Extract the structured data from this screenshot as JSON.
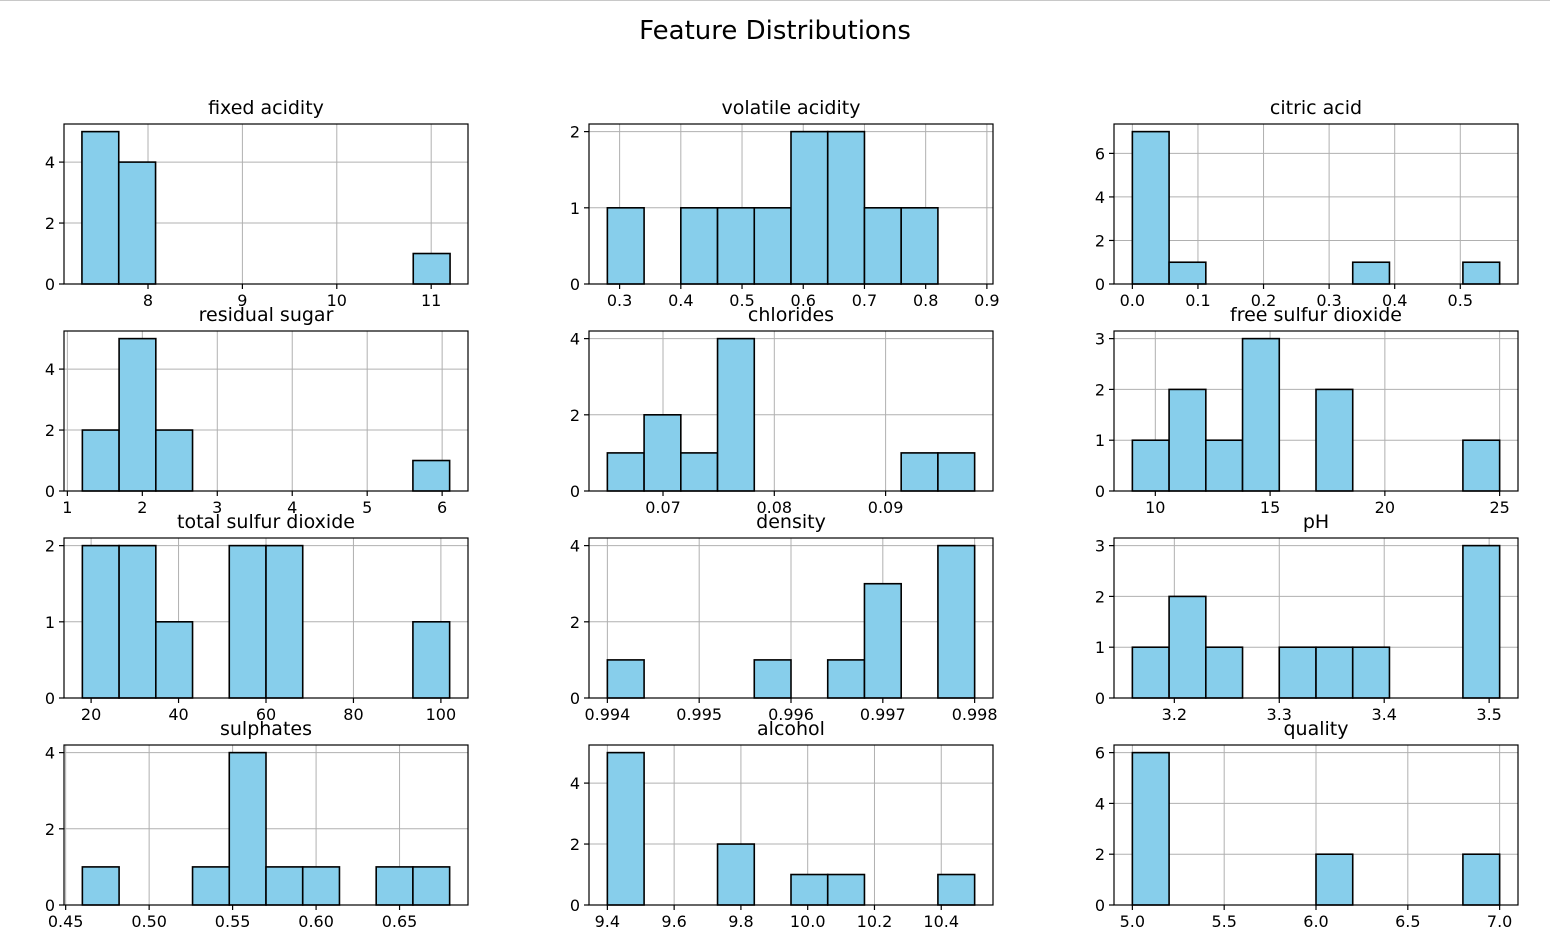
{
  "suptitle": "Feature Distributions",
  "colors": {
    "bar_fill": "#87ceeb",
    "bar_edge": "#000000",
    "grid": "#b0b0b0"
  },
  "chart_data": [
    {
      "type": "bar",
      "title": "fixed acidity",
      "bin_range": [
        7.3,
        11.2
      ],
      "counts": [
        5,
        4,
        0,
        0,
        0,
        0,
        0,
        0,
        0,
        1
      ],
      "xlim": [
        7.11,
        11.39
      ],
      "ylim": [
        0,
        5.25
      ],
      "xticks": [
        8,
        9,
        10,
        11
      ],
      "xtick_labels": [
        "8",
        "9",
        "10",
        "11"
      ],
      "yticks": [
        0,
        2,
        4
      ],
      "ytick_labels": [
        "0",
        "2",
        "4"
      ]
    },
    {
      "type": "bar",
      "title": "volatile acidity",
      "bin_range": [
        0.28,
        0.88
      ],
      "counts": [
        1,
        0,
        1,
        1,
        1,
        2,
        2,
        1,
        1,
        0
      ],
      "xlim": [
        0.25,
        0.91
      ],
      "ylim": [
        0,
        2.1
      ],
      "xticks": [
        0.3,
        0.4,
        0.5,
        0.6,
        0.7,
        0.8,
        0.9
      ],
      "xtick_labels": [
        "0.3",
        "0.4",
        "0.5",
        "0.6",
        "0.7",
        "0.8",
        "0.9"
      ],
      "yticks": [
        0,
        1,
        2
      ],
      "ytick_labels": [
        "0",
        "1",
        "2"
      ]
    },
    {
      "type": "bar",
      "title": "citric acid",
      "bin_range": [
        0.0,
        0.56
      ],
      "counts": [
        7,
        1,
        0,
        0,
        0,
        0,
        1,
        0,
        0,
        1
      ],
      "xlim": [
        -0.028,
        0.588
      ],
      "ylim": [
        0,
        7.35
      ],
      "xticks": [
        0,
        0.1,
        0.2,
        0.3,
        0.4,
        0.5
      ],
      "xtick_labels": [
        "0.0",
        "0.1",
        "0.2",
        "0.3",
        "0.4",
        "0.5"
      ],
      "yticks": [
        0,
        2,
        4,
        6
      ],
      "ytick_labels": [
        "0",
        "2",
        "4",
        "6"
      ]
    },
    {
      "type": "bar",
      "title": "residual sugar",
      "bin_range": [
        1.2,
        6.1
      ],
      "counts": [
        2,
        5,
        2,
        0,
        0,
        0,
        0,
        0,
        0,
        1
      ],
      "xlim": [
        0.955,
        6.345
      ],
      "ylim": [
        0,
        5.25
      ],
      "xticks": [
        1,
        2,
        3,
        4,
        5,
        6
      ],
      "xtick_labels": [
        "1",
        "2",
        "3",
        "4",
        "5",
        "6"
      ],
      "yticks": [
        0,
        2,
        4
      ],
      "ytick_labels": [
        "0",
        "2",
        "4"
      ]
    },
    {
      "type": "bar",
      "title": "chlorides",
      "bin_range": [
        0.065,
        0.098
      ],
      "counts": [
        1,
        2,
        1,
        4,
        0,
        0,
        0,
        0,
        1,
        1
      ],
      "xlim": [
        0.06335,
        0.09965
      ],
      "ylim": [
        0,
        4.2
      ],
      "xticks": [
        0.07,
        0.08,
        0.09
      ],
      "xtick_labels": [
        "0.07",
        "0.08",
        "0.09"
      ],
      "yticks": [
        0,
        2,
        4
      ],
      "ytick_labels": [
        "0",
        "2",
        "4"
      ]
    },
    {
      "type": "bar",
      "title": "free sulfur dioxide",
      "bin_range": [
        9,
        25
      ],
      "counts": [
        1,
        2,
        1,
        3,
        0,
        2,
        0,
        0,
        0,
        1
      ],
      "xlim": [
        8.2,
        25.8
      ],
      "ylim": [
        0,
        3.15
      ],
      "xticks": [
        10,
        15,
        20,
        25
      ],
      "xtick_labels": [
        "10",
        "15",
        "20",
        "25"
      ],
      "yticks": [
        0,
        1,
        2,
        3
      ],
      "ytick_labels": [
        "0",
        "1",
        "2",
        "3"
      ]
    },
    {
      "type": "bar",
      "title": "total sulfur dioxide",
      "bin_range": [
        18,
        102
      ],
      "counts": [
        2,
        2,
        1,
        0,
        2,
        2,
        0,
        0,
        0,
        1
      ],
      "xlim": [
        13.8,
        106.2
      ],
      "ylim": [
        0,
        2.1
      ],
      "xticks": [
        20,
        40,
        60,
        80,
        100
      ],
      "xtick_labels": [
        "20",
        "40",
        "60",
        "80",
        "100"
      ],
      "yticks": [
        0,
        1,
        2
      ],
      "ytick_labels": [
        "0",
        "1",
        "2"
      ]
    },
    {
      "type": "bar",
      "title": "density",
      "bin_range": [
        0.994,
        0.998
      ],
      "counts": [
        1,
        0,
        0,
        0,
        1,
        0,
        1,
        3,
        0,
        4
      ],
      "xlim": [
        0.9938,
        0.9982
      ],
      "ylim": [
        0,
        4.2
      ],
      "xticks": [
        0.994,
        0.995,
        0.996,
        0.997,
        0.998
      ],
      "xtick_labels": [
        "0.994",
        "0.995",
        "0.996",
        "0.997",
        "0.998"
      ],
      "yticks": [
        0,
        2,
        4
      ],
      "ytick_labels": [
        "0",
        "2",
        "4"
      ]
    },
    {
      "type": "bar",
      "title": "pH",
      "bin_range": [
        3.16,
        3.51
      ],
      "counts": [
        1,
        2,
        1,
        0,
        1,
        1,
        1,
        0,
        0,
        3
      ],
      "xlim": [
        3.1425,
        3.5275
      ],
      "ylim": [
        0,
        3.15
      ],
      "xticks": [
        3.2,
        3.3,
        3.4,
        3.5
      ],
      "xtick_labels": [
        "3.2",
        "3.3",
        "3.4",
        "3.5"
      ],
      "yticks": [
        0,
        1,
        2,
        3
      ],
      "ytick_labels": [
        "0",
        "1",
        "2",
        "3"
      ]
    },
    {
      "type": "bar",
      "title": "sulphates",
      "bin_range": [
        0.46,
        0.68
      ],
      "counts": [
        1,
        0,
        0,
        1,
        4,
        1,
        1,
        0,
        1,
        1
      ],
      "xlim": [
        0.449,
        0.691
      ],
      "ylim": [
        0,
        4.2
      ],
      "xticks": [
        0.45,
        0.5,
        0.55,
        0.6,
        0.65
      ],
      "xtick_labels": [
        "0.45",
        "0.50",
        "0.55",
        "0.60",
        "0.65"
      ],
      "yticks": [
        0,
        2,
        4
      ],
      "ytick_labels": [
        "0",
        "2",
        "4"
      ]
    },
    {
      "type": "bar",
      "title": "alcohol",
      "bin_range": [
        9.4,
        10.5
      ],
      "counts": [
        5,
        0,
        0,
        2,
        0,
        1,
        1,
        0,
        0,
        1
      ],
      "xlim": [
        9.345,
        10.555
      ],
      "ylim": [
        0,
        5.25
      ],
      "xticks": [
        9.4,
        9.6,
        9.8,
        10.0,
        10.2,
        10.4
      ],
      "xtick_labels": [
        "9.4",
        "9.6",
        "9.8",
        "10.0",
        "10.2",
        "10.4"
      ],
      "yticks": [
        0,
        2,
        4
      ],
      "ytick_labels": [
        "0",
        "2",
        "4"
      ]
    },
    {
      "type": "bar",
      "title": "quality",
      "bin_range": [
        5,
        7
      ],
      "counts": [
        6,
        0,
        0,
        0,
        0,
        2,
        0,
        0,
        0,
        2
      ],
      "xlim": [
        4.9,
        7.1
      ],
      "ylim": [
        0,
        6.3
      ],
      "xticks": [
        5,
        5.5,
        6,
        6.5,
        7
      ],
      "xtick_labels": [
        "5.0",
        "5.5",
        "6.0",
        "6.5",
        "7.0"
      ],
      "yticks": [
        0,
        2,
        4,
        6
      ],
      "ytick_labels": [
        "0",
        "2",
        "4",
        "6"
      ]
    }
  ]
}
